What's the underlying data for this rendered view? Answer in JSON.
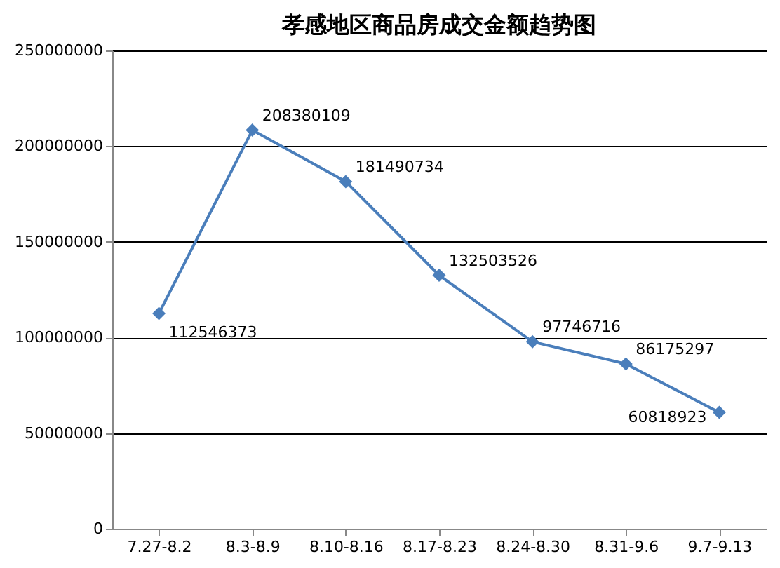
{
  "chart_data": {
    "type": "line",
    "title": "孝感地区商品房成交金额趋势图",
    "categories": [
      "7.27-8.2",
      "8.3-8.9",
      "8.10-8.16",
      "8.17-8.23",
      "8.24-8.30",
      "8.31-9.6",
      "9.7-9.13"
    ],
    "series": [
      {
        "color": "#4a7ebb",
        "values": [
          112546373,
          208380109,
          181490734,
          132503526,
          97746716,
          86175297,
          60818923
        ]
      }
    ],
    "ylim": [
      0,
      250000000
    ],
    "yticks": [
      0,
      50000000,
      100000000,
      150000000,
      200000000,
      250000000
    ],
    "grid": "y",
    "marker": "diamond",
    "line_style": "solid",
    "data_labels": true
  }
}
